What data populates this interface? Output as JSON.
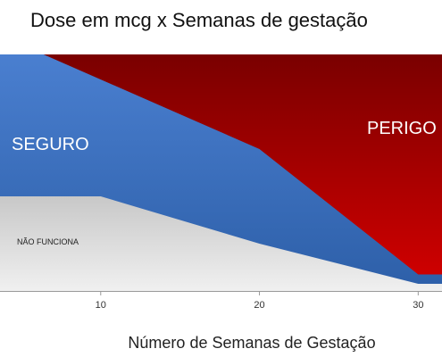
{
  "chart_data": {
    "type": "area",
    "title": "Dose em mcg x Semanas de gestação",
    "xlabel": "Número de Semanas de Gestação",
    "ylabel": "",
    "xlim": [
      0,
      31.5
    ],
    "ylim": [
      0,
      100
    ],
    "xticks": [
      10,
      20,
      30
    ],
    "grid": false,
    "legend": "none",
    "series": [
      {
        "name": "NÃO FUNCIONA",
        "x": [
          0,
          10,
          20,
          30,
          31.5
        ],
        "y": [
          40,
          40,
          20,
          3,
          3
        ]
      },
      {
        "name": "SEGURO",
        "x": [
          0,
          6.4,
          20,
          30,
          31.5
        ],
        "y": [
          100,
          100,
          60,
          7,
          7
        ]
      },
      {
        "name": "PERIGO",
        "x": [
          0,
          31.5
        ],
        "y": [
          100,
          100
        ]
      }
    ],
    "annotations": [
      {
        "text": "SEGURO",
        "series": "SEGURO"
      },
      {
        "text": "PERIGO",
        "series": "PERIGO"
      },
      {
        "text": "NÃO FUNCIONA",
        "series": "NÃO FUNCIONA"
      }
    ],
    "colors": {
      "perigo_dark": "#7a0000",
      "perigo_light": "#d40000",
      "seguro_dark": "#2d5fa8",
      "seguro_light": "#4a7fd0",
      "nao_dark": "#c8c8c8",
      "nao_light": "#f0f0f0",
      "axis": "#999999"
    }
  }
}
